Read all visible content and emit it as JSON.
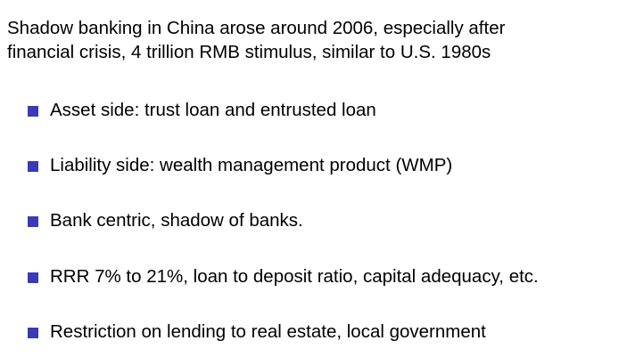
{
  "slide": {
    "intro_line1": "Shadow banking in China arose around 2006, especially after",
    "intro_line2": "financial crisis, 4 trillion RMB stimulus, similar to U.S. 1980s",
    "bullets": [
      {
        "text": "Asset side: trust loan and entrusted loan"
      },
      {
        "text": "Liability side: wealth management product (WMP)"
      },
      {
        "text": "Bank centric, shadow of banks."
      },
      {
        "text": "RRR 7% to 21%, loan to deposit ratio, capital adequacy, etc."
      },
      {
        "text": "Restriction on lending to real estate, local government"
      }
    ],
    "colors": {
      "bullet": "#3a3ab8",
      "text": "#000000",
      "background": "#ffffff"
    }
  }
}
